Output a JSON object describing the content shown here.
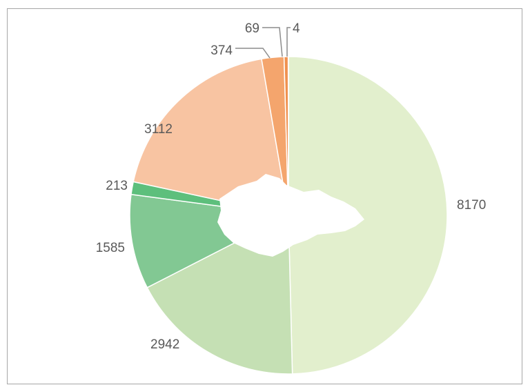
{
  "chart_data": {
    "type": "pie",
    "values": [
      8170,
      2942,
      1585,
      213,
      3112,
      374,
      69,
      4
    ],
    "colors": [
      "#e2efcd",
      "#c5e0b4",
      "#82c893",
      "#5dbf7c",
      "#f8c4a2",
      "#f4a56d",
      "#f0914f",
      "#ed7d31"
    ]
  }
}
